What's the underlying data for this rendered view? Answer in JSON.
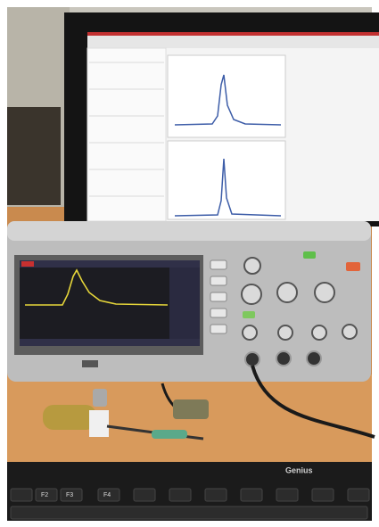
{
  "scene": {
    "keyboard_brand": "Genius",
    "keys": [
      "F2",
      "F3",
      "F4"
    ]
  }
}
